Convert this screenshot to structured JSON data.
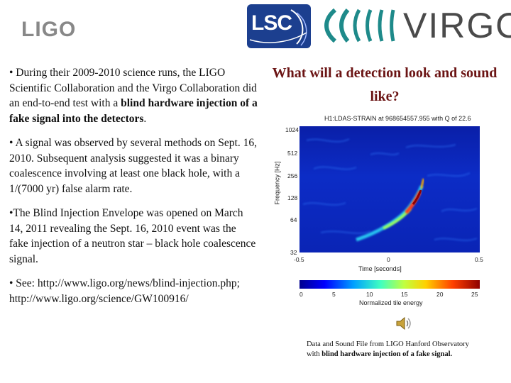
{
  "logos": {
    "ligo": "LIGO",
    "lsc": "LSC",
    "virgo": "VIRGO"
  },
  "bullets": [
    {
      "text": "• During their 2009-2010 science runs, the LIGO Scientific Collaboration and the Virgo Collaboration did an end-to-end test with a ",
      "bold": "blind hardware injection of a fake signal into the detectors",
      "tail": "."
    },
    {
      "text": "• A signal was observed by several methods on Sept. 16, 2010. Subsequent analysis suggested it was a binary coalescence involving at least one black hole, with a 1/(7000 yr) false alarm rate.",
      "bold": "",
      "tail": ""
    },
    {
      "text": "•The Blind Injection Envelope was opened on March 14, 2011 revealing the Sept. 16, 2010 event was the fake injection of a neutron star – black hole coalescence signal.",
      "bold": "",
      "tail": ""
    },
    {
      "text": "• See: http://www.ligo.org/news/blind-injection.php; http://www.ligo.org/science/GW100916/",
      "bold": "",
      "tail": ""
    }
  ],
  "heading": "What will a detection look and sound like?",
  "spectrogram": {
    "title": "H1:LDAS-STRAIN at 968654557.955 with Q of 22.6",
    "ylabel": "Frequency [Hz]",
    "xlabel": "Time [seconds]",
    "yticks": [
      "1024",
      "512",
      "256",
      "128",
      "64",
      "32"
    ],
    "xticks": [
      "-0.5",
      "0",
      "0.5"
    ],
    "colorbar_ticks": [
      "0",
      "5",
      "10",
      "15",
      "20",
      "25"
    ],
    "colorbar_label": "Normalized tile energy"
  },
  "speaker_icon": "speaker-icon",
  "caption": {
    "line1": "Data and Sound File from LIGO Hanford Observatory",
    "line2_prefix": "with ",
    "line2_bold": "blind hardware injection of a fake signal."
  }
}
